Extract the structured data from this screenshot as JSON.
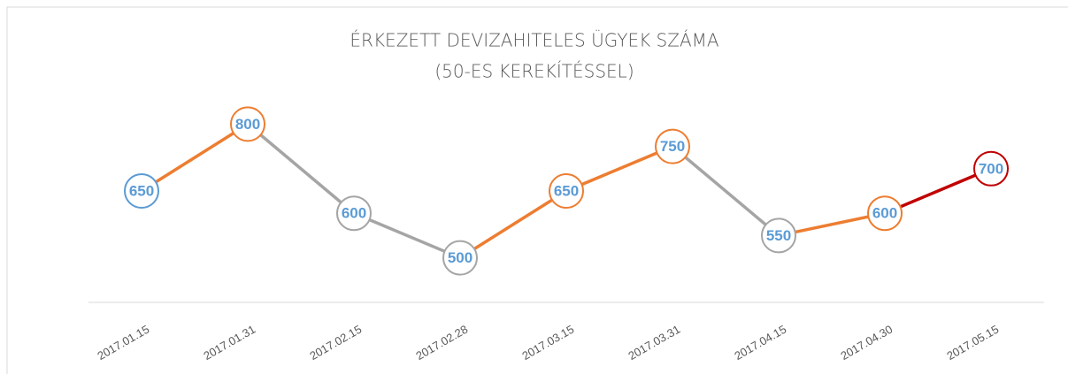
{
  "chart_data": {
    "type": "line",
    "title": "ÉRKEZETT DEVIZAHITELES ÜGYEK SZÁMA",
    "subtitle": "(50-ES KEREKÍTÉSSEL)",
    "categories": [
      "2017.01.15",
      "2017.01.31",
      "2017.02.15",
      "2017.02.28",
      "2017.03.15",
      "2017.03.31",
      "2017.04.15",
      "2017.04.30",
      "2017.05.15"
    ],
    "values": [
      650,
      800,
      600,
      500,
      650,
      750,
      550,
      600,
      700
    ],
    "segment_colors": [
      "#ed7d31",
      "#a5a5a5",
      "#a5a5a5",
      "#ed7d31",
      "#ed7d31",
      "#a5a5a5",
      "#ed7d31",
      "#c00000"
    ],
    "marker_colors": [
      "#5b9bd5",
      "#ed7d31",
      "#a5a5a5",
      "#a5a5a5",
      "#ed7d31",
      "#ed7d31",
      "#a5a5a5",
      "#ed7d31",
      "#c00000"
    ],
    "label_color": "#5b9bd5",
    "ylim": [
      400,
      900
    ]
  }
}
